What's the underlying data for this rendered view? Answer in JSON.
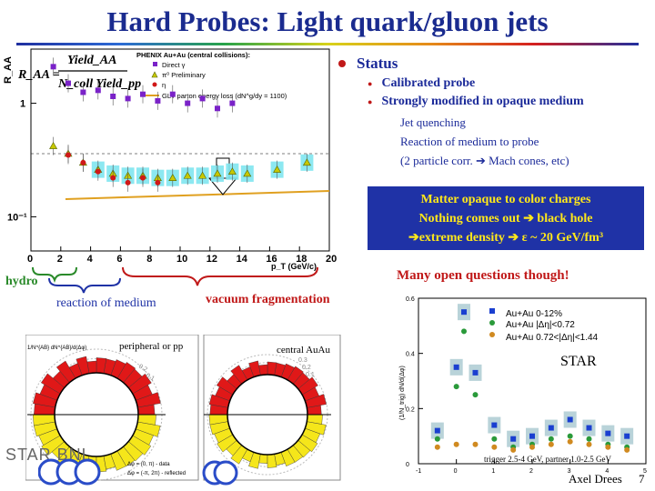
{
  "title": "Hard Probes: Light quark/gluon jets",
  "raa_chart": {
    "ylabel": "R_AA",
    "formula": {
      "lhs": "R_AA =",
      "num": "Yield_AA",
      "den": "N_coll Yield_pp"
    },
    "legend": {
      "heading": "PHENIX Au+Au (central collisions):",
      "items": [
        "Direct γ",
        "π⁰ Preliminary",
        "η",
        "GLV parton energy loss (dN^g/dy = 1100)"
      ]
    },
    "xlabel": "p_T (GeV/c)",
    "y_ticks": [
      "1",
      "10⁻¹"
    ],
    "x_ticks": [
      "0",
      "2",
      "4",
      "6",
      "8",
      "10",
      "12",
      "14",
      "16",
      "18",
      "20"
    ]
  },
  "chart_data": [
    {
      "type": "scatter",
      "title": "",
      "xlabel": "p_T (GeV/c)",
      "ylabel": "R_AA",
      "yscale": "log",
      "xlim": [
        0,
        20
      ],
      "ylim": [
        0.05,
        3
      ],
      "series": [
        {
          "name": "Direct γ",
          "color": "#7a22c8",
          "x": [
            1.5,
            2.5,
            3.5,
            4.5,
            5.5,
            6.5,
            7.5,
            8.5,
            9.5,
            10.5,
            11.5,
            12.5,
            13.5
          ],
          "y": [
            2.1,
            1.5,
            1.25,
            1.3,
            1.15,
            1.1,
            1.2,
            1.05,
            1.2,
            1.0,
            1.1,
            0.9,
            1.0
          ]
        },
        {
          "name": "π⁰ Preliminary",
          "color": "#c8c800",
          "x": [
            1.5,
            2.5,
            3.5,
            4.5,
            5.5,
            6.5,
            7.5,
            8.5,
            9.5,
            10.5,
            11.5,
            12.5,
            13.5,
            14.5,
            16.5,
            18.5
          ],
          "y": [
            0.42,
            0.36,
            0.3,
            0.26,
            0.24,
            0.23,
            0.23,
            0.22,
            0.22,
            0.23,
            0.23,
            0.24,
            0.25,
            0.24,
            0.26,
            0.3
          ]
        },
        {
          "name": "η",
          "color": "#d01818",
          "x": [
            2.5,
            3.5,
            4.5,
            5.5,
            6.5,
            7.5,
            8.5
          ],
          "y": [
            0.35,
            0.3,
            0.25,
            0.22,
            0.2,
            0.22,
            0.2
          ]
        }
      ]
    },
    {
      "type": "scatter",
      "title": "STAR",
      "xlabel": "",
      "ylabel": "(1/N_trig) dN/d(Δφ)",
      "xlim": [
        -1,
        5
      ],
      "ylim": [
        0,
        0.6
      ],
      "series": [
        {
          "name": "Au+Au 0-12%",
          "color": "#1a3fd0",
          "x": [
            -0.5,
            0.0,
            0.2,
            0.5,
            1.0,
            1.5,
            2.0,
            2.5,
            3.0,
            3.5,
            4.0,
            4.5
          ],
          "y": [
            0.12,
            0.35,
            0.55,
            0.33,
            0.14,
            0.09,
            0.1,
            0.13,
            0.16,
            0.13,
            0.11,
            0.1
          ]
        },
        {
          "name": "Au+Au |Δη|<0.72",
          "color": "#2a9a3a",
          "x": [
            -0.5,
            0.0,
            0.2,
            0.5,
            1.0,
            1.5,
            2.0,
            2.5,
            3.0,
            3.5,
            4.0,
            4.5
          ],
          "y": [
            0.09,
            0.28,
            0.48,
            0.25,
            0.09,
            0.06,
            0.07,
            0.09,
            0.1,
            0.09,
            0.07,
            0.06
          ]
        },
        {
          "name": "Au+Au 0.72<|Δη|<1.44",
          "color": "#d08a20",
          "x": [
            -0.5,
            0.0,
            0.5,
            1.0,
            1.5,
            2.0,
            2.5,
            3.0,
            3.5,
            4.0,
            4.5
          ],
          "y": [
            0.06,
            0.07,
            0.07,
            0.06,
            0.05,
            0.06,
            0.07,
            0.08,
            0.07,
            0.06,
            0.05
          ]
        }
      ]
    }
  ],
  "status": {
    "heading": "Status",
    "bullets": [
      "Calibrated probe",
      "Strongly modified in opaque medium"
    ],
    "sub": [
      "Jet quenching",
      "Reaction of medium to probe",
      "(2 particle corr. ➔ Mach cones, etc)"
    ]
  },
  "matter_box": {
    "line1": "Matter opaque to color charges",
    "line2": "Nothing comes out ➔ black hole",
    "line3": "➔extreme density ➔ ε ~ 20 GeV/fm³"
  },
  "open_questions": "Many open questions though!",
  "ranges": {
    "hydro": "hydro",
    "reaction": "reaction of medium",
    "vacuum": "vacuum fragmentation"
  },
  "polar": {
    "left_label": "peripheral or pp",
    "right_label": "central AuAu",
    "ylabel": "1/N^{AB} dN^{AB}/d(Δφ)",
    "legend1": "Δφ = (0, π) - data",
    "legend2": "Δφ = (-π, 2π) - reflected",
    "ring_ticks_left": [
      "0.2",
      "0.1"
    ],
    "ring_ticks_right": [
      "0.3",
      "0.2",
      "0.1"
    ]
  },
  "star_chart": {
    "legend": [
      "Au+Au 0-12%",
      "Au+Au |Δη|<0.72",
      "Au+Au 0.72<|Δη|<1.44"
    ],
    "label": "STAR",
    "caption": "trigger 2.5-4 GeV, partner 1.0-2.5 GeV",
    "y_ticks": [
      "0.6",
      "0.4",
      "0.2",
      "0"
    ],
    "x_ticks": [
      "-1",
      "0",
      "1",
      "2",
      "3",
      "4",
      "5"
    ]
  },
  "logo": "STAR BNL",
  "author": "Axel Drees",
  "page_num": "7"
}
